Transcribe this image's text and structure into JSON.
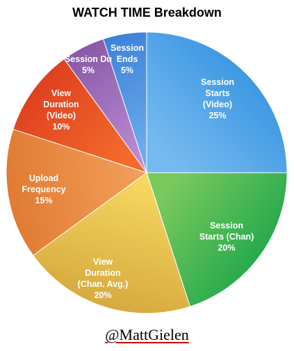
{
  "chart_data": {
    "type": "pie",
    "title": "WATCH TIME Breakdown",
    "slices": [
      {
        "label_lines": [
          "Session",
          "Starts",
          "(Video)",
          "25%"
        ],
        "value": 25,
        "color": "#2f8fdf",
        "color_light": "#74b9ef"
      },
      {
        "label_lines": [
          "Session",
          "Starts (Chan)",
          "20%"
        ],
        "value": 20,
        "color": "#14a34a",
        "color_light": "#79c95c"
      },
      {
        "label_lines": [
          "View",
          "Duration",
          "(Chan. Avg.)",
          "20%"
        ],
        "value": 20,
        "color": "#d4a73c",
        "color_light": "#f7d862"
      },
      {
        "label_lines": [
          "Upload",
          "Frequency",
          "15%"
        ],
        "value": 15,
        "color": "#e07a32",
        "color_light": "#f2a05a"
      },
      {
        "label_lines": [
          "View",
          "Duration",
          "(Video)",
          "10%"
        ],
        "value": 10,
        "color": "#dd3d1e",
        "color_light": "#f36a2c"
      },
      {
        "label_lines": [
          "Session Du",
          "5%"
        ],
        "value": 5,
        "color": "#8a5aa8",
        "color_light": "#b88ad0"
      },
      {
        "label_lines": [
          "Session",
          "Ends",
          "5%"
        ],
        "value": 5,
        "color": "#3c82d8",
        "color_light": "#6fb0ee"
      }
    ]
  },
  "credit": "@MattGielen"
}
